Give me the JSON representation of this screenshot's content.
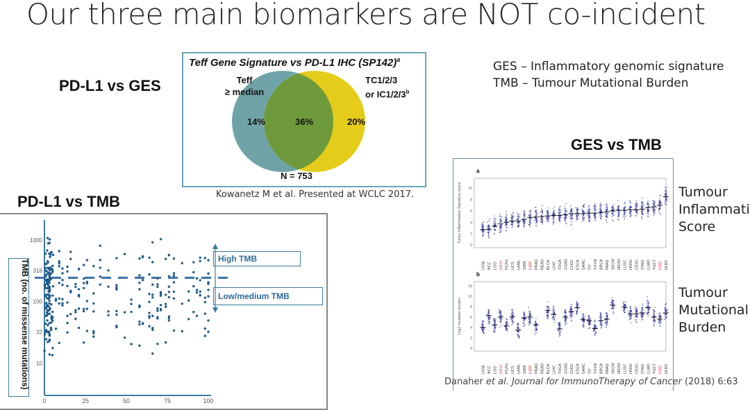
{
  "slide": {
    "title": "Our three main biomarkers are NOT co-incident",
    "definitions": [
      "GES – Inflammatory genomic signature",
      "TMB – Tumour Mutational Burden"
    ]
  },
  "venn_section": {
    "heading": "PD-L1 vs GES",
    "figure_title": "Teff Gene Signature vs PD-L1 IHC (SP142)",
    "figure_title_sup": "a",
    "left_label_line1": "Teff",
    "left_label_line2": "≥ median",
    "right_label_line1": "TC1/2/3",
    "right_label_line2": "or IC1/2/3",
    "right_label_sup": "b",
    "left_only": "14%",
    "overlap": "36%",
    "right_only": "20%",
    "n_label": "N = 753",
    "left_color": "#6fa3a8",
    "right_color": "#e6cc1a",
    "overlap_color": "#6e9a3c",
    "citation": "Kowanetz M et al. Presented at WCLC 2017."
  },
  "ges_tmb_section": {
    "heading": "GES vs TMB",
    "panel_a_letter": "a",
    "panel_b_letter": "b",
    "label_a": [
      "Tumour",
      "Inflammation",
      "Score"
    ],
    "label_b": [
      "Tumour",
      "Mutational",
      "Burden"
    ],
    "citation_authors": "Danaher ",
    "citation_etal": "et al. Journal for ImmunoTherapy of Cancer",
    "citation_ref": " (2018) 6:63"
  },
  "tmb_section": {
    "heading": "PD-L1 vs TMB",
    "y_axis_label": "TMB (no. of missense mutations)",
    "high_label": "High TMB",
    "low_label": "Low/medium TMB"
  },
  "chart_data": [
    {
      "type": "scatter",
      "xlabel": "",
      "ylabel": "TMB (no. of missense mutations)",
      "x_ticks": [
        "0",
        "25",
        "50",
        "75",
        "100"
      ],
      "y_ticks": [
        "1000",
        "316",
        "100",
        "32",
        "10"
      ],
      "y_scale": "log",
      "xlim": [
        0,
        100
      ],
      "ylim": [
        3,
        2000
      ],
      "threshold_line": 243,
      "annotations": [
        "High TMB",
        "Low/medium TMB"
      ],
      "color": "#1f5a8a"
    },
    {
      "type": "scatter",
      "panel": "a",
      "ylabel": "Tumor Inflammation Signature score",
      "ylim": [
        0,
        11
      ],
      "y_ticks": [
        "0",
        "2",
        "4",
        "6",
        "8",
        "10"
      ],
      "categories": [
        "UVM",
        "ACC",
        "LGG",
        "KICH",
        "PCPG",
        "UCS",
        "LAML",
        "GBM",
        "KIRP",
        "PRAD",
        "READ",
        "BLCA",
        "LIHC",
        "THCA",
        "COAD",
        "CHOL",
        "ESCA",
        "SARC",
        "OV",
        "THYM",
        "BRCA",
        "PAAD",
        "SKCM",
        "MESO",
        "LUSC",
        "HNSC",
        "CESC",
        "STAD",
        "LUAD",
        "TGCT",
        "KIRC",
        "DLBC"
      ],
      "highlighted": [
        "KICH",
        "KIRP",
        "KIRC"
      ],
      "highlight_color": "#e0303a",
      "medians": [
        2.7,
        2.7,
        3.3,
        3.7,
        4.0,
        4.2,
        4.2,
        4.5,
        4.8,
        4.9,
        5.0,
        5.1,
        5.2,
        5.2,
        5.3,
        5.5,
        5.5,
        5.5,
        5.6,
        5.6,
        5.7,
        5.8,
        6.0,
        6.1,
        6.1,
        6.2,
        6.2,
        6.3,
        6.6,
        6.7,
        7.0,
        8.5
      ],
      "color": "#2a2a9a"
    },
    {
      "type": "scatter",
      "panel": "b",
      "ylabel": "Log2 mutation burden",
      "ylim": [
        0,
        12
      ],
      "y_ticks": [
        "0",
        "2",
        "4",
        "6",
        "8",
        "10",
        "12"
      ],
      "categories": [
        "UVM",
        "ACC",
        "LGG",
        "KICH",
        "PCPG",
        "UCS",
        "LAML",
        "GBM",
        "KIRP",
        "PRAD",
        "READ",
        "BLCA",
        "LIHC",
        "THCA",
        "COAD",
        "CHOL",
        "ESCA",
        "SARC",
        "OV",
        "THYM",
        "BRCA",
        "PAAD",
        "SKCM",
        "MESO",
        "LUSC",
        "HNSC",
        "CESC",
        "STAD",
        "LUAD",
        "TGCT",
        "KIRC",
        "DLBC"
      ],
      "highlighted": [
        "KICH",
        "KIRP",
        "KIRC"
      ],
      "medians": [
        4.0,
        6.3,
        4.5,
        6.0,
        4.3,
        6.1,
        3.5,
        5.8,
        6.0,
        4.5,
        null,
        7.3,
        6.5,
        3.7,
        6.0,
        7.0,
        7.8,
        5.5,
        5.3,
        3.8,
        5.3,
        5.6,
        8.3,
        null,
        7.9,
        6.6,
        6.6,
        6.8,
        7.8,
        6.0,
        5.6,
        6.8
      ],
      "color": "#2a2a9a"
    }
  ]
}
